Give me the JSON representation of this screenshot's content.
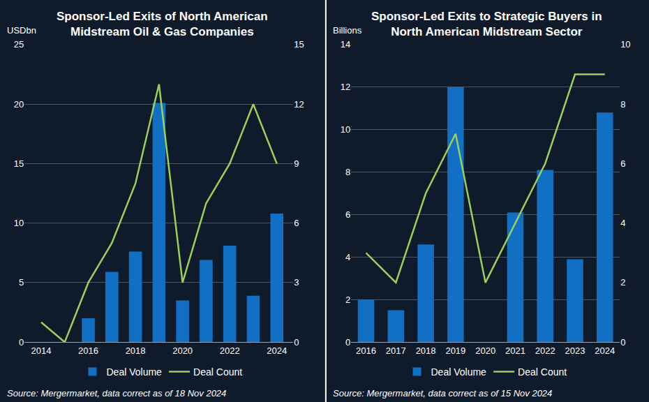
{
  "chart_data": [
    {
      "type": "bar",
      "title": "Sponsor-Led Exits of North American\nMidstream Oil & Gas Companies",
      "ylabel": "USDbn",
      "x": [
        2014,
        2015,
        2016,
        2017,
        2018,
        2019,
        2020,
        2021,
        2022,
        2023,
        2024
      ],
      "xlim": [
        2013.3,
        2024.7
      ],
      "xticks": [
        2014,
        2016,
        2018,
        2020,
        2022,
        2024
      ],
      "series": [
        {
          "name": "Deal Volume",
          "type": "bar",
          "color": "#1170c4",
          "values": [
            null,
            null,
            2.0,
            5.9,
            7.6,
            20.1,
            3.5,
            6.9,
            8.1,
            3.9,
            10.8
          ]
        },
        {
          "name": "Deal Count",
          "type": "line",
          "color": "#9ccf5a",
          "axis": "y2",
          "values": [
            1,
            0,
            3,
            5,
            8,
            13,
            3,
            7,
            9,
            12,
            9
          ]
        }
      ],
      "ylim": [
        0,
        25
      ],
      "yticks": [
        0,
        5,
        10,
        15,
        20,
        25
      ],
      "y2lim": [
        0,
        15
      ],
      "y2ticks": [
        0,
        3,
        6,
        9,
        12,
        15
      ],
      "grid": true,
      "legend": "bottom",
      "source": "Source: Mergermarket, data correct as of 18 Nov 2024"
    },
    {
      "type": "bar",
      "title": "Sponsor-Led Exits to Strategic Buyers in\nNorth American Midstream Sector",
      "ylabel": "Billions",
      "categories": [
        "2016",
        "2017",
        "2018",
        "2019",
        "2020",
        "2021",
        "2022",
        "2023",
        "2024"
      ],
      "series": [
        {
          "name": "Deal Volume",
          "type": "bar",
          "color": "#1170c4",
          "values": [
            2.0,
            1.5,
            4.6,
            12.0,
            null,
            6.1,
            8.1,
            3.9,
            10.8
          ]
        },
        {
          "name": "Deal Count",
          "type": "line",
          "color": "#9ccf5a",
          "axis": "y2",
          "values": [
            3,
            2,
            5,
            7,
            2,
            4,
            6,
            9,
            9
          ]
        }
      ],
      "ylim": [
        0,
        14
      ],
      "yticks": [
        0,
        2,
        4,
        6,
        8,
        10,
        12,
        14
      ],
      "y2lim": [
        0,
        10
      ],
      "y2ticks": [
        0,
        2,
        4,
        6,
        8,
        10
      ],
      "grid": true,
      "legend": "bottom",
      "source": "Source: Mergermarket, data correct as of 15 Nov 2024"
    }
  ]
}
